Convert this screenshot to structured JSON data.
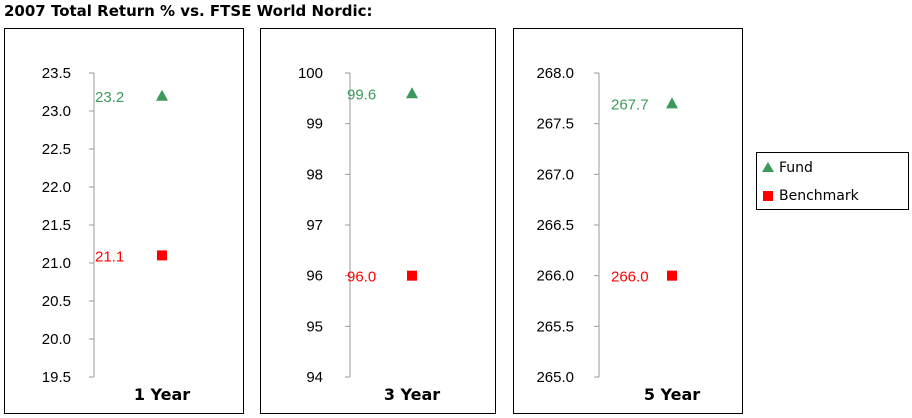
{
  "title": "2007 Total Return % vs. FTSE World Nordic:",
  "colors": {
    "fund": "#3a9a5c",
    "benchmark": "#ff0000",
    "axis": "#999999"
  },
  "legend": {
    "fund_label": "Fund",
    "benchmark_label": "Benchmark"
  },
  "chart_data": [
    {
      "type": "scatter",
      "xlabel": "1 Year",
      "ylim": [
        19.5,
        23.5
      ],
      "y_ticks": [
        "19.5",
        "20.0",
        "20.5",
        "21.0",
        "21.5",
        "22.0",
        "22.5",
        "23.0",
        "23.5"
      ],
      "series": [
        {
          "name": "Fund",
          "value": 23.2,
          "label": "23.2"
        },
        {
          "name": "Benchmark",
          "value": 21.1,
          "label": "21.1"
        }
      ]
    },
    {
      "type": "scatter",
      "xlabel": "3 Year",
      "ylim": [
        94,
        100
      ],
      "y_ticks": [
        "94",
        "95",
        "96",
        "97",
        "98",
        "99",
        "100"
      ],
      "series": [
        {
          "name": "Fund",
          "value": 99.6,
          "label": "99.6"
        },
        {
          "name": "Benchmark",
          "value": 96.0,
          "label": "96.0"
        }
      ]
    },
    {
      "type": "scatter",
      "xlabel": "5 Year",
      "ylim": [
        265.0,
        268.0
      ],
      "y_ticks": [
        "265.0",
        "265.5",
        "266.0",
        "266.5",
        "267.0",
        "267.5",
        "268.0"
      ],
      "series": [
        {
          "name": "Fund",
          "value": 267.7,
          "label": "267.7"
        },
        {
          "name": "Benchmark",
          "value": 266.0,
          "label": "266.0"
        }
      ]
    }
  ]
}
